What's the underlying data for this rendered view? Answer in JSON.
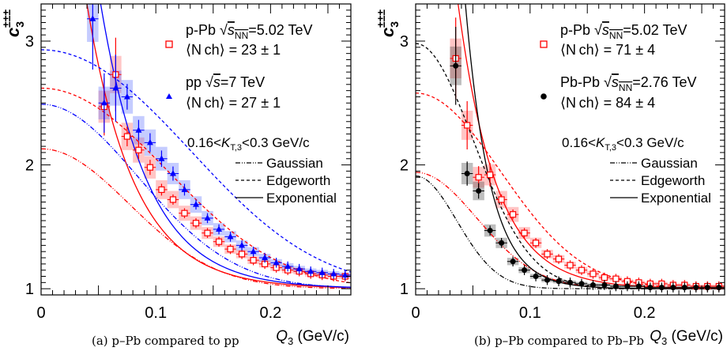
{
  "chart_data": [
    {
      "type": "scatter",
      "panel": "(a)",
      "caption": "(a)  p–Pb compared to pp",
      "xlabel": "Q",
      "xlabel_sub": "3",
      "xlabel_unit": "(GeV/c)",
      "ylabel": "c",
      "ylabel_sub": "3",
      "ylabel_sup": "±±±",
      "xlim": [
        0,
        0.27
      ],
      "ylim": [
        0.95,
        3.3
      ],
      "xticks": [
        0,
        0.1,
        0.2
      ],
      "xtick_labels": [
        "0",
        "0.1",
        "0.2"
      ],
      "yticks": [
        1,
        2,
        3
      ],
      "ytick_labels": [
        "1",
        "2",
        "3"
      ],
      "grid": false,
      "legend_placement": "top-right",
      "kt_label": "0.16<K",
      "kt_sub": "T,3",
      "kt_rest": "<0.3 GeV/c",
      "series": [
        {
          "name": "p-Pb √s_NN=5.02 TeV",
          "legend_line1": "p-Pb",
          "legend_energy": "=5.02 TeV",
          "legend_line2": "⟨N_ch⟩ = 23 ± 1",
          "color": "#ff0000",
          "marker": "open-square",
          "x": [
            0.055,
            0.065,
            0.075,
            0.085,
            0.095,
            0.105,
            0.115,
            0.125,
            0.135,
            0.145,
            0.155,
            0.165,
            0.175,
            0.185,
            0.195,
            0.205,
            0.215,
            0.225,
            0.235,
            0.245,
            0.255,
            0.265
          ],
          "y": [
            2.47,
            2.73,
            2.23,
            2.12,
            1.98,
            1.8,
            1.72,
            1.61,
            1.53,
            1.45,
            1.38,
            1.32,
            1.28,
            1.23,
            1.2,
            1.17,
            1.15,
            1.14,
            1.12,
            1.11,
            1.1,
            1.1
          ]
        },
        {
          "name": "pp √s=7 TeV",
          "legend_line1": "pp",
          "legend_energy": "=7 TeV",
          "legend_line2": "⟨N_ch⟩ = 27 ± 1",
          "color": "#0000ff",
          "marker": "filled-triangle",
          "x": [
            0.045,
            0.055,
            0.065,
            0.075,
            0.085,
            0.095,
            0.105,
            0.115,
            0.125,
            0.135,
            0.145,
            0.155,
            0.165,
            0.175,
            0.185,
            0.195,
            0.205,
            0.215,
            0.225,
            0.235,
            0.245,
            0.255,
            0.265
          ],
          "y": [
            3.18,
            2.5,
            2.62,
            2.55,
            2.28,
            2.18,
            2.05,
            1.93,
            1.8,
            1.68,
            1.57,
            1.48,
            1.42,
            1.35,
            1.3,
            1.25,
            1.21,
            1.18,
            1.16,
            1.14,
            1.13,
            1.12,
            1.11
          ]
        }
      ],
      "fit_legend": [
        "Gaussian",
        "Edgeworth",
        "Exponential"
      ]
    },
    {
      "type": "scatter",
      "panel": "(b)",
      "caption": "(b)  p–Pb compared to Pb–Pb",
      "xlabel": "Q",
      "xlabel_sub": "3",
      "xlabel_unit": "(GeV/c)",
      "ylabel": "c",
      "ylabel_sub": "3",
      "ylabel_sup": "±±±",
      "xlim": [
        0,
        0.27
      ],
      "ylim": [
        0.95,
        3.3
      ],
      "xticks": [
        0,
        0.1,
        0.2
      ],
      "xtick_labels": [
        "0",
        "0.1",
        "0.2"
      ],
      "yticks": [
        1,
        2,
        3
      ],
      "ytick_labels": [
        "1",
        "2",
        "3"
      ],
      "grid": false,
      "legend_placement": "top-right",
      "kt_label": "0.16<K",
      "kt_sub": "T,3",
      "kt_rest": "<0.3 GeV/c",
      "series": [
        {
          "name": "p-Pb √s_NN=5.02 TeV",
          "legend_line1": "p-Pb",
          "legend_energy": "=5.02 TeV",
          "legend_line2": "⟨N_ch⟩ = 71 ± 4",
          "color": "#ff0000",
          "marker": "open-square",
          "x": [
            0.035,
            0.045,
            0.055,
            0.065,
            0.075,
            0.085,
            0.095,
            0.105,
            0.115,
            0.125,
            0.135,
            0.145,
            0.155,
            0.165,
            0.175,
            0.185,
            0.195,
            0.205,
            0.215,
            0.225,
            0.235,
            0.245,
            0.255,
            0.265
          ],
          "y": [
            2.86,
            2.32,
            1.9,
            1.92,
            1.72,
            1.6,
            1.45,
            1.37,
            1.28,
            1.24,
            1.19,
            1.15,
            1.12,
            1.09,
            1.08,
            1.06,
            1.05,
            1.04,
            1.04,
            1.03,
            1.03,
            1.02,
            1.02,
            1.02
          ]
        },
        {
          "name": "Pb-Pb √s_NN=2.76 TeV",
          "legend_line1": "Pb-Pb",
          "legend_energy": "=2.76 TeV",
          "legend_line2": "⟨N_ch⟩ = 84 ± 4",
          "color": "#000000",
          "marker": "filled-circle",
          "x": [
            0.035,
            0.045,
            0.055,
            0.065,
            0.075,
            0.085,
            0.095,
            0.105,
            0.115,
            0.125,
            0.135,
            0.145,
            0.155,
            0.165,
            0.175,
            0.185,
            0.195,
            0.205,
            0.215,
            0.225,
            0.235,
            0.245,
            0.255,
            0.265
          ],
          "y": [
            2.8,
            1.93,
            1.79,
            1.47,
            1.37,
            1.22,
            1.15,
            1.1,
            1.07,
            1.06,
            1.05,
            1.04,
            1.03,
            1.03,
            1.02,
            1.02,
            1.02,
            1.01,
            1.01,
            1.01,
            1.01,
            1.01,
            1.01,
            1.01
          ]
        }
      ],
      "fit_legend": [
        "Gaussian",
        "Edgeworth",
        "Exponential"
      ]
    }
  ]
}
